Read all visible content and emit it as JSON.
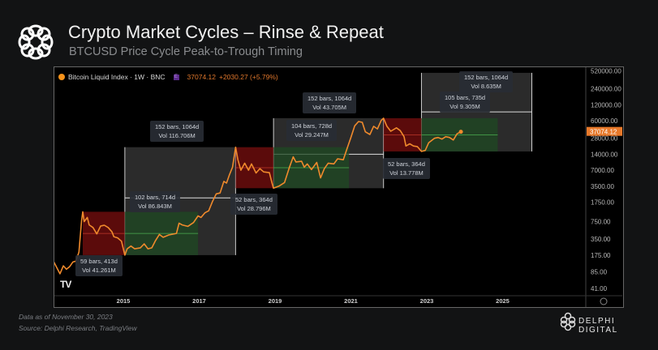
{
  "header": {
    "title": "Crypto Market Cycles – Rinse & Repeat",
    "subtitle": "BTCUSD Price Cycle Peak-to-Trough Timing",
    "logo": "delphi-knot-logo"
  },
  "footer": {
    "data_note": "Data as of November 30, 2023",
    "source": "Source: Delphi Research, TradingView",
    "brand": "DELPHI DIGITAL"
  },
  "chart_data": {
    "type": "line",
    "symbol": "Bitcoin Liquid Index · 1W · BNC",
    "symbol_badge": "E",
    "last_price": "37074.12",
    "change": "+2030.27 (+5.79%)",
    "watermark": "TV",
    "y_scale": "log",
    "ylim": [
      41,
      520000
    ],
    "xlim": [
      2013.16,
      2026.2
    ],
    "x_ticks": [
      "2015",
      "2017",
      "2019",
      "2021",
      "2023",
      "2025"
    ],
    "y_ticks": [
      "520000.00",
      "240000.00",
      "120000.00",
      "60000.00",
      "28000.00",
      "14000.00",
      "7000.00",
      "3500.00",
      "1750.00",
      "750.00",
      "350.00",
      "175.00",
      "85.00",
      "41.00"
    ],
    "colors": {
      "line": "#f08a2c",
      "price_tag": "#e8792a",
      "bear": "#7a0f0f",
      "bull": "#1f4a23",
      "range": "#3a3a3a"
    },
    "series": [
      {
        "points": [
          [
            2013.17,
            130
          ],
          [
            2013.25,
            100
          ],
          [
            2013.33,
            78
          ],
          [
            2013.42,
            110
          ],
          [
            2013.5,
            95
          ],
          [
            2013.58,
            105
          ],
          [
            2013.67,
            130
          ],
          [
            2013.75,
            135
          ],
          [
            2013.83,
            200
          ],
          [
            2013.9,
            800
          ],
          [
            2013.93,
            1150
          ],
          [
            2013.97,
            750
          ],
          [
            2014.05,
            900
          ],
          [
            2014.1,
            650
          ],
          [
            2014.2,
            580
          ],
          [
            2014.3,
            440
          ],
          [
            2014.4,
            620
          ],
          [
            2014.5,
            640
          ],
          [
            2014.6,
            580
          ],
          [
            2014.7,
            480
          ],
          [
            2014.75,
            390
          ],
          [
            2014.85,
            370
          ],
          [
            2014.95,
            320
          ],
          [
            2015.04,
            175
          ],
          [
            2015.1,
            230
          ],
          [
            2015.2,
            260
          ],
          [
            2015.3,
            230
          ],
          [
            2015.45,
            240
          ],
          [
            2015.55,
            285
          ],
          [
            2015.65,
            230
          ],
          [
            2015.75,
            240
          ],
          [
            2015.85,
            330
          ],
          [
            2015.95,
            430
          ],
          [
            2016.05,
            380
          ],
          [
            2016.2,
            420
          ],
          [
            2016.4,
            450
          ],
          [
            2016.47,
            700
          ],
          [
            2016.55,
            650
          ],
          [
            2016.7,
            610
          ],
          [
            2016.85,
            720
          ],
          [
            2016.97,
            960
          ],
          [
            2017.05,
            900
          ],
          [
            2017.15,
            1100
          ],
          [
            2017.25,
            1200
          ],
          [
            2017.35,
            1800
          ],
          [
            2017.45,
            2500
          ],
          [
            2017.55,
            2600
          ],
          [
            2017.65,
            4300
          ],
          [
            2017.72,
            4000
          ],
          [
            2017.8,
            5800
          ],
          [
            2017.88,
            8000
          ],
          [
            2017.96,
            19000
          ],
          [
            2018.02,
            11000
          ],
          [
            2018.1,
            7000
          ],
          [
            2018.2,
            9500
          ],
          [
            2018.3,
            7000
          ],
          [
            2018.38,
            9200
          ],
          [
            2018.5,
            6200
          ],
          [
            2018.6,
            7500
          ],
          [
            2018.7,
            6500
          ],
          [
            2018.85,
            6300
          ],
          [
            2018.92,
            4000
          ],
          [
            2018.96,
            3200
          ],
          [
            2019.1,
            3500
          ],
          [
            2019.25,
            4100
          ],
          [
            2019.38,
            8000
          ],
          [
            2019.48,
            12500
          ],
          [
            2019.55,
            10000
          ],
          [
            2019.7,
            10300
          ],
          [
            2019.77,
            8000
          ],
          [
            2019.85,
            9200
          ],
          [
            2019.96,
            7200
          ],
          [
            2020.1,
            9800
          ],
          [
            2020.2,
            5000
          ],
          [
            2020.3,
            7500
          ],
          [
            2020.4,
            9500
          ],
          [
            2020.55,
            9200
          ],
          [
            2020.65,
            11500
          ],
          [
            2020.8,
            11000
          ],
          [
            2020.9,
            18000
          ],
          [
            2021.0,
            29000
          ],
          [
            2021.1,
            48000
          ],
          [
            2021.2,
            58000
          ],
          [
            2021.3,
            56000
          ],
          [
            2021.38,
            37000
          ],
          [
            2021.5,
            33000
          ],
          [
            2021.6,
            47000
          ],
          [
            2021.7,
            42000
          ],
          [
            2021.8,
            61000
          ],
          [
            2021.86,
            67000
          ],
          [
            2021.95,
            47000
          ],
          [
            2022.05,
            38000
          ],
          [
            2022.2,
            44000
          ],
          [
            2022.3,
            39000
          ],
          [
            2022.4,
            30000
          ],
          [
            2022.45,
            20000
          ],
          [
            2022.55,
            22000
          ],
          [
            2022.65,
            20000
          ],
          [
            2022.75,
            19500
          ],
          [
            2022.86,
            15800
          ],
          [
            2022.96,
            16500
          ],
          [
            2023.05,
            23000
          ],
          [
            2023.2,
            28000
          ],
          [
            2023.3,
            29000
          ],
          [
            2023.4,
            27000
          ],
          [
            2023.5,
            30000
          ],
          [
            2023.6,
            29000
          ],
          [
            2023.7,
            26000
          ],
          [
            2023.8,
            34000
          ],
          [
            2023.9,
            37074
          ]
        ]
      }
    ],
    "zones": [
      {
        "kind": "range",
        "from": 2015.04,
        "to": 2017.96,
        "low": 175,
        "high": 19000,
        "mid": 2100
      },
      {
        "kind": "bear",
        "from": 2013.93,
        "to": 2015.04,
        "low": 175,
        "high": 1150
      },
      {
        "kind": "bull",
        "from": 2015.04,
        "to": 2016.97,
        "low": 175,
        "high": 1150
      },
      {
        "kind": "range",
        "from": 2018.96,
        "to": 2021.86,
        "low": 3200,
        "high": 67000,
        "mid": 14000
      },
      {
        "kind": "bear",
        "from": 2017.96,
        "to": 2018.96,
        "low": 3200,
        "high": 19000
      },
      {
        "kind": "bull",
        "from": 2018.96,
        "to": 2020.95,
        "low": 3200,
        "high": 19000
      },
      {
        "kind": "range",
        "from": 2022.86,
        "to": 2025.77,
        "low": 15800,
        "high": 480000,
        "mid": 88000
      },
      {
        "kind": "bear",
        "from": 2021.86,
        "to": 2022.86,
        "low": 15800,
        "high": 67000
      },
      {
        "kind": "bull",
        "from": 2022.86,
        "to": 2024.87,
        "low": 15800,
        "high": 67000
      }
    ],
    "annotations": [
      {
        "bars": "59 bars, 413d",
        "vol": "Vol 41.261M"
      },
      {
        "bars": "102 bars, 714d",
        "vol": "Vol 86.843M"
      },
      {
        "bars": "152 bars, 1064d",
        "vol": "Vol 116.706M"
      },
      {
        "bars": "52 bars, 364d",
        "vol": "Vol 28.796M"
      },
      {
        "bars": "104 bars, 728d",
        "vol": "Vol 29.247M"
      },
      {
        "bars": "152 bars, 1064d",
        "vol": "Vol 43.705M"
      },
      {
        "bars": "52 bars, 364d",
        "vol": "Vol 13.778M"
      },
      {
        "bars": "105 bars, 735d",
        "vol": "Vol 9.305M"
      },
      {
        "bars": "152 bars, 1064d",
        "vol": "Vol 8.635M"
      }
    ]
  }
}
